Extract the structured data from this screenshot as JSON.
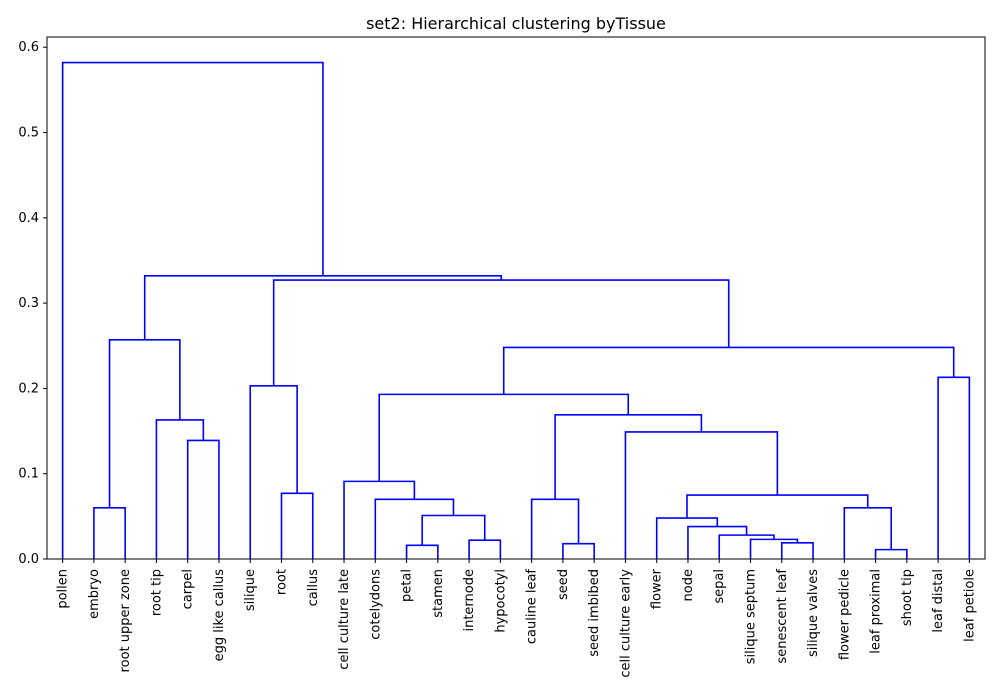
{
  "chart_data": {
    "type": "dendrogram",
    "title": "set2: Hierarchical clustering byTissue",
    "xlabel": "",
    "ylabel": "",
    "ylim": [
      0,
      0.612
    ],
    "yticks": [
      0.0,
      0.1,
      0.2,
      0.3,
      0.4,
      0.5,
      0.6
    ],
    "ytick_labels": [
      "0.0",
      "0.1",
      "0.2",
      "0.3",
      "0.4",
      "0.5",
      "0.6"
    ],
    "link_color": "#0000ff",
    "leaves": [
      "pollen",
      "embryo",
      "root upper zone",
      "root tip",
      "carpel",
      "egg like callus",
      "silique",
      "root",
      "callus",
      "cell culture late",
      "cotelydons",
      "petal",
      "stamen",
      "internode",
      "hypocotyl",
      "cauline leaf",
      "seed",
      "seed imbibed",
      "cell culture early",
      "flower",
      "node",
      "sepal",
      "silique septum",
      "senescent leaf",
      "silique valves",
      "flower pedicle",
      "leaf proximal",
      "shoot tip",
      "leaf distal",
      "leaf petiole"
    ],
    "merges": [
      [
        27,
        26,
        0.011
      ],
      [
        23,
        24,
        0.019
      ],
      [
        11,
        12,
        0.016
      ],
      [
        16,
        17,
        0.018
      ],
      [
        22,
        31,
        0.023
      ],
      [
        13,
        14,
        0.022
      ],
      [
        21,
        34,
        0.028
      ],
      [
        20,
        36,
        0.038
      ],
      [
        19,
        37,
        0.048
      ],
      [
        1,
        2,
        0.06
      ],
      [
        25,
        30,
        0.06
      ],
      [
        32,
        35,
        0.051
      ],
      [
        15,
        33,
        0.07
      ],
      [
        10,
        41,
        0.07
      ],
      [
        38,
        40,
        0.075
      ],
      [
        7,
        8,
        0.077
      ],
      [
        9,
        43,
        0.091
      ],
      [
        4,
        5,
        0.139
      ],
      [
        18,
        44,
        0.149
      ],
      [
        3,
        47,
        0.163
      ],
      [
        42,
        48,
        0.169
      ],
      [
        46,
        50,
        0.193
      ],
      [
        6,
        45,
        0.203
      ],
      [
        28,
        29,
        0.213
      ],
      [
        51,
        53,
        0.248
      ],
      [
        39,
        49,
        0.257
      ],
      [
        52,
        54,
        0.327
      ],
      [
        55,
        56,
        0.332
      ],
      [
        0,
        57,
        0.582
      ]
    ]
  }
}
